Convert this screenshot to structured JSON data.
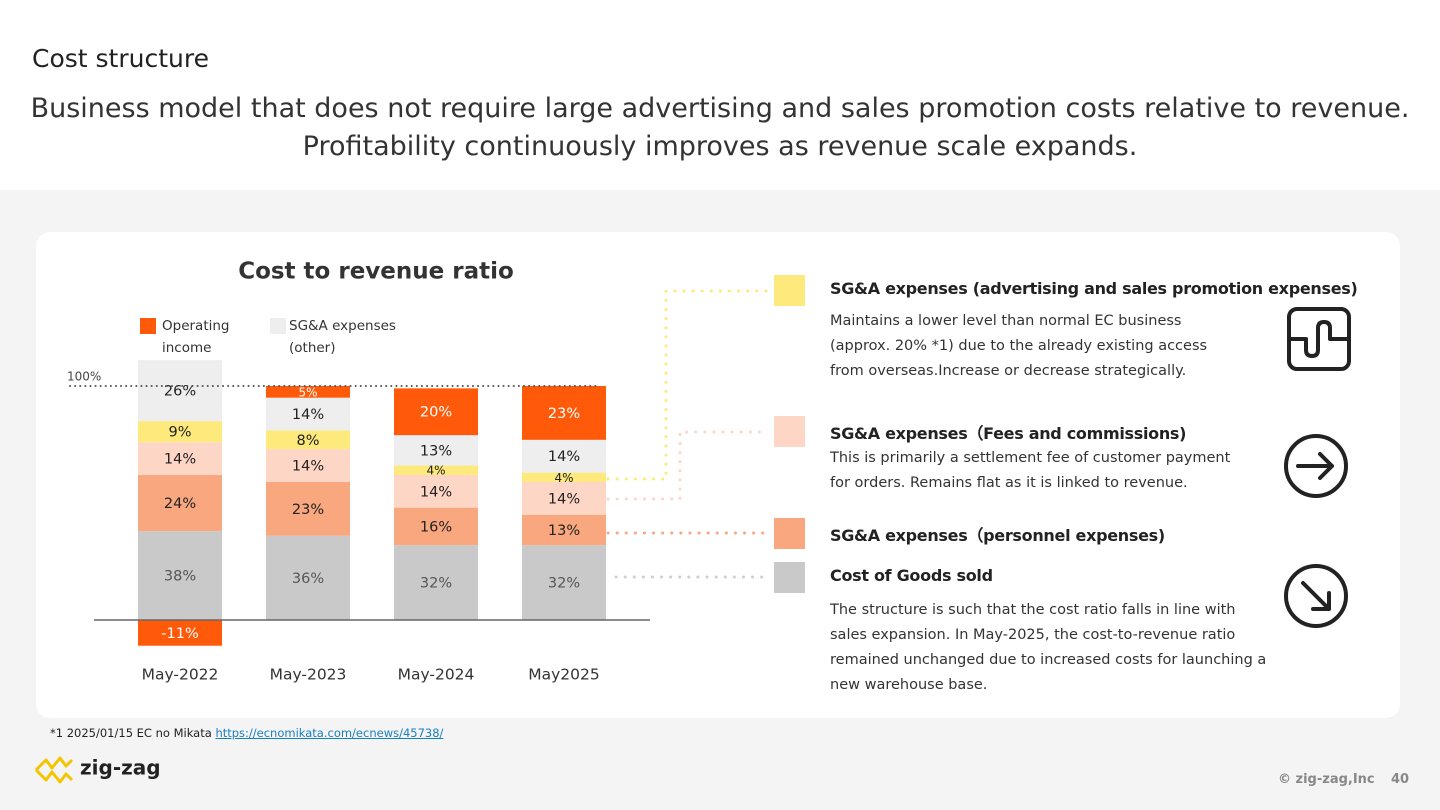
{
  "header": {
    "title": "Cost structure",
    "headline": [
      "Business model that does not require large advertising and sales promotion costs relative to revenue.",
      "Profitability continuously improves as revenue scale expands."
    ]
  },
  "chart_data": {
    "type": "stacked_bar",
    "title": "Cost to revenue ratio",
    "categories": [
      "May-2022",
      "May-2023",
      "May-2024",
      "May2025"
    ],
    "series": [
      {
        "name": "Cost of Goods sold",
        "color": "#c9c9c9",
        "label_color": "#555555",
        "values": [
          38,
          36,
          32,
          32
        ],
        "value_labels": [
          "38%",
          "36%",
          "32%",
          "32%"
        ],
        "description": [
          "The structure is such that the cost ratio falls in line with",
          "sales expansion. In May-2025, the cost-to-revenue ratio",
          "remained unchanged due to increased costs for launching a",
          "new warehouse base."
        ]
      },
      {
        "name": "SG&A expenses（personnel expenses)",
        "color": "#f9a77f",
        "label_color": "#222222",
        "values": [
          24,
          23,
          16,
          13
        ],
        "value_labels": [
          "24%",
          "23%",
          "16%",
          "13%"
        ]
      },
      {
        "name": "SG&A expenses（Fees and commissions)",
        "color": "#fdd6c6",
        "label_color": "#222222",
        "values": [
          14,
          14,
          14,
          14
        ],
        "value_labels": [
          "14%",
          "14%",
          "14%",
          "14%"
        ],
        "description": [
          "This is primarily a settlement fee of customer payment",
          "for orders. Remains flat as it is linked to revenue."
        ]
      },
      {
        "name": "SG&A expenses (advertising and sales promotion expenses)",
        "color": "#fde97c",
        "label_color": "#222222",
        "values": [
          9,
          8,
          4,
          4
        ],
        "value_labels": [
          "9%",
          "8%",
          "4%",
          "4%"
        ],
        "description": [
          "Maintains a lower level than normal EC business",
          "(approx. 20% *1) due to the already existing access",
          "from overseas.Increase or decrease strategically."
        ]
      },
      {
        "name": "SG&A expenses (other)",
        "color": "#eeeeee",
        "label_color": "#222222",
        "values": [
          26,
          14,
          13,
          14
        ],
        "value_labels": [
          "26%",
          "14%",
          "13%",
          "14%"
        ]
      },
      {
        "name": "Operating income",
        "color": "#ff5a0a",
        "label_color": "#ffffff",
        "values": [
          -11,
          5,
          20,
          23
        ],
        "value_labels": [
          "-11%",
          "5%",
          "20%",
          "23%"
        ]
      }
    ],
    "ylim": [
      -15,
      115
    ],
    "reference_line": {
      "value": 100,
      "label": "100%"
    }
  },
  "footnote": {
    "text": "*1  2025/01/15 EC no Mikata",
    "link": "https://ecnomikata.com/ecnews/45738/"
  },
  "footer": {
    "logo": "zig-zag",
    "copyright": "© zig-zag,Inc",
    "page": "40"
  }
}
